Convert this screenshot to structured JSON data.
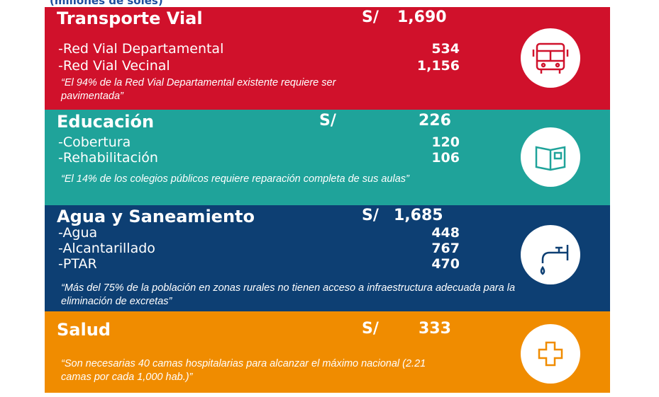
{
  "header": "(millones de soles)",
  "sections": [
    {
      "title": "Transporte Vial",
      "currency": "S/",
      "total": "1,690",
      "items": [
        {
          "label": "-Red Vial Departamental",
          "value": "534"
        },
        {
          "label": "-Red Vial Vecinal",
          "value": "1,156"
        }
      ],
      "quote": "“El 94% de la Red Vial Departamental existente requiere ser pavimentada”"
    },
    {
      "title": "Educación",
      "currency": "S/",
      "total": "226",
      "items": [
        {
          "label": "-Cobertura",
          "value": "120"
        },
        {
          "label": "-Rehabilitación",
          "value": "106"
        }
      ],
      "quote": "“El 14% de los colegios públicos requiere reparación completa de sus aulas”"
    },
    {
      "title": "Agua y Saneamiento",
      "currency": "S/",
      "total": "1,685",
      "items": [
        {
          "label": "-Agua",
          "value": "448"
        },
        {
          "label": "-Alcantarillado",
          "value": "767"
        },
        {
          "label": "-PTAR",
          "value": "470"
        }
      ],
      "quote": "“Más del 75% de la población en zonas rurales no tienen acceso a infraestructura adecuada para la eliminación de excretas”"
    },
    {
      "title": "Salud",
      "currency": "S/",
      "total": "333",
      "items": [],
      "quote": "“Son necesarias 40 camas hospitalarias para alcanzar el máximo nacional (2.21 camas por cada 1,000 hab.)”"
    }
  ]
}
